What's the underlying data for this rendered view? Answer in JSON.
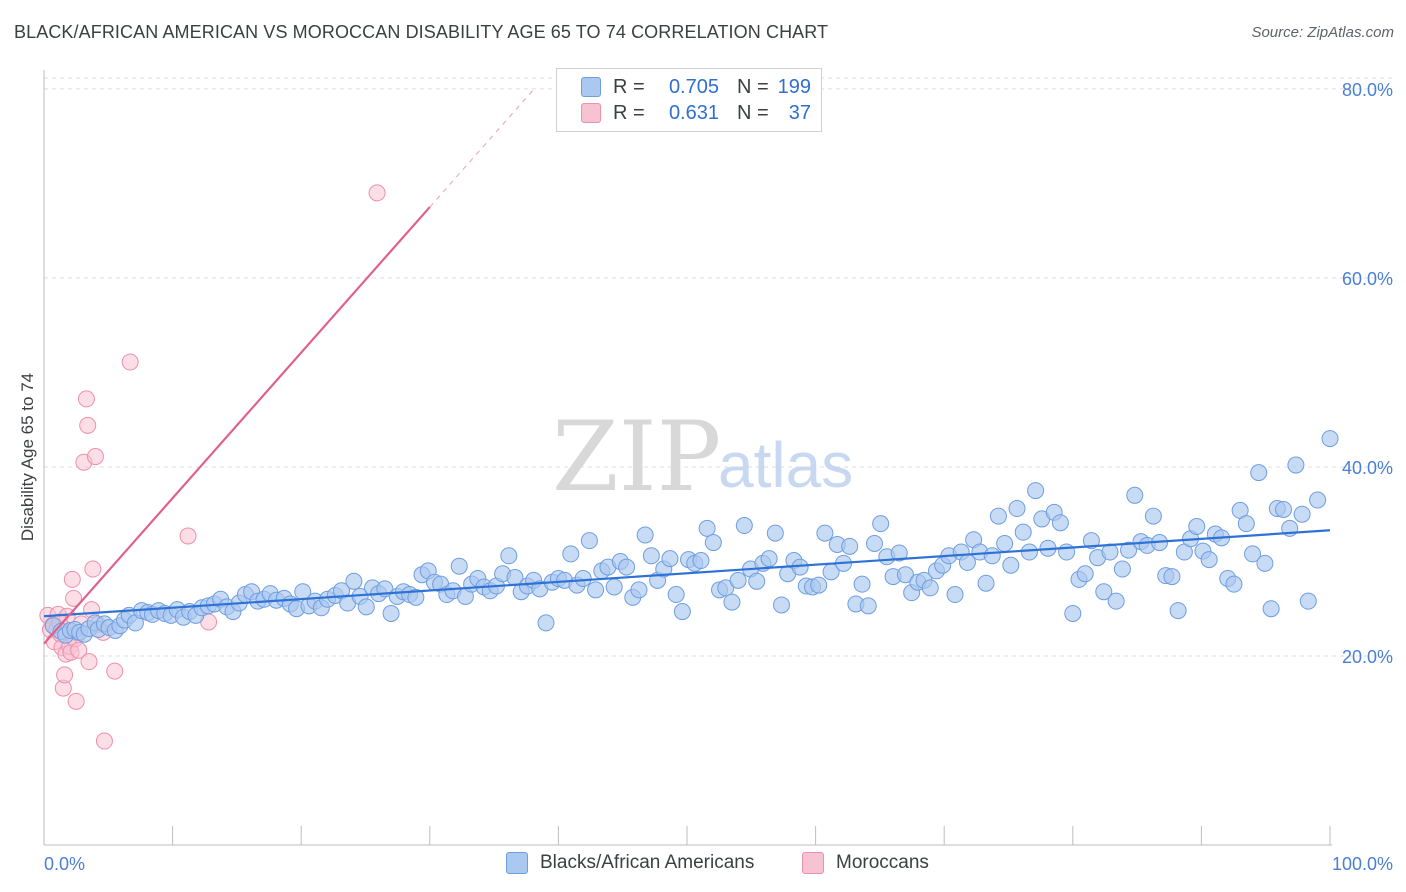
{
  "title": "BLACK/AFRICAN AMERICAN VS MOROCCAN DISABILITY AGE 65 TO 74 CORRELATION CHART",
  "source": "Source: ZipAtlas.com",
  "watermark": {
    "zip": "ZIP",
    "atlas": "atlas"
  },
  "colors": {
    "blue_fill": "#aac8f0",
    "blue_stroke": "#6e9ee0",
    "blue_line": "#2f72d6",
    "pink_fill": "#f7c2d2",
    "pink_stroke": "#ee8fae",
    "pink_line": "#e0608c",
    "tick_text": "#4a7fd4",
    "grid": "#dddddd"
  },
  "legend": {
    "rows": [
      {
        "r_label": "R =",
        "r_value": "0.705",
        "n_label": "N =",
        "n_value": "199"
      },
      {
        "r_label": "R =",
        "r_value": "0.631",
        "n_label": "N =",
        "n_value": "37"
      }
    ]
  },
  "bottom_legend": {
    "blue": "Blacks/African Americans",
    "pink": "Moroccans"
  },
  "chart_data": {
    "type": "scatter",
    "title": "BLACK/AFRICAN AMERICAN VS MOROCCAN DISABILITY AGE 65 TO 74 CORRELATION CHART",
    "xlabel": "",
    "ylabel": "Disability Age 65 to 74",
    "xlim": [
      0,
      100
    ],
    "ylim": [
      0,
      82
    ],
    "x_ticks_labeled": [
      "0.0%",
      "100.0%"
    ],
    "y_ticks": [
      {
        "value": 20,
        "label": "20.0%"
      },
      {
        "value": 40,
        "label": "40.0%"
      },
      {
        "value": 60,
        "label": "60.0%"
      },
      {
        "value": 80,
        "label": "80.0%"
      }
    ],
    "grid": "horizontal dashed",
    "legend_placement": "top-center",
    "series": [
      {
        "name": "Blacks/African Americans",
        "color": "#aac8f0",
        "trend": {
          "x": [
            0,
            100
          ],
          "y": [
            24.2,
            33.3
          ]
        },
        "points": [
          [
            0.6,
            23.2
          ],
          [
            1.1,
            22.6
          ],
          [
            1.4,
            22.2
          ],
          [
            1.7,
            22.7
          ],
          [
            2.0,
            22.8
          ],
          [
            2.3,
            22.5
          ],
          [
            2.6,
            22.3
          ],
          [
            2.9,
            22.9
          ],
          [
            3.3,
            23.5
          ],
          [
            3.5,
            22.8
          ],
          [
            3.9,
            23.4
          ],
          [
            4.2,
            23.0
          ],
          [
            4.6,
            22.7
          ],
          [
            4.9,
            23.2
          ],
          [
            5.2,
            23.8
          ],
          [
            5.5,
            24.3
          ],
          [
            5.9,
            23.5
          ],
          [
            6.3,
            24.8
          ],
          [
            6.7,
            24.6
          ],
          [
            7.0,
            24.4
          ],
          [
            7.4,
            24.8
          ],
          [
            7.8,
            24.5
          ],
          [
            8.2,
            24.3
          ],
          [
            8.6,
            24.9
          ],
          [
            9.0,
            24.1
          ],
          [
            9.4,
            24.7
          ],
          [
            9.8,
            24.3
          ],
          [
            10.2,
            25.1
          ],
          [
            10.6,
            25.3
          ],
          [
            11.0,
            25.5
          ],
          [
            11.4,
            26.0
          ],
          [
            11.8,
            25.2
          ],
          [
            12.2,
            24.7
          ],
          [
            12.6,
            25.6
          ],
          [
            13.0,
            26.5
          ],
          [
            13.4,
            26.8
          ],
          [
            13.8,
            25.8
          ],
          [
            14.2,
            26.0
          ],
          [
            14.6,
            26.6
          ],
          [
            15.0,
            25.9
          ],
          [
            15.5,
            26.1
          ],
          [
            15.9,
            25.5
          ],
          [
            16.3,
            25.0
          ],
          [
            16.7,
            26.8
          ],
          [
            17.1,
            25.3
          ],
          [
            17.5,
            25.8
          ],
          [
            17.9,
            25.1
          ],
          [
            18.3,
            26.0
          ],
          [
            18.8,
            26.4
          ],
          [
            19.2,
            26.9
          ],
          [
            19.6,
            25.6
          ],
          [
            20.0,
            27.9
          ],
          [
            20.4,
            26.3
          ],
          [
            20.8,
            25.2
          ],
          [
            21.2,
            27.2
          ],
          [
            21.6,
            26.6
          ],
          [
            22.0,
            27.1
          ],
          [
            22.4,
            24.5
          ],
          [
            22.8,
            26.3
          ],
          [
            23.2,
            26.8
          ],
          [
            23.6,
            26.5
          ],
          [
            24.0,
            26.2
          ],
          [
            24.4,
            28.6
          ],
          [
            24.8,
            29.0
          ],
          [
            25.2,
            27.8
          ],
          [
            25.6,
            27.6
          ],
          [
            26.0,
            26.5
          ],
          [
            26.4,
            26.9
          ],
          [
            26.8,
            29.5
          ],
          [
            27.2,
            26.3
          ],
          [
            27.6,
            27.6
          ],
          [
            28.0,
            28.2
          ],
          [
            28.4,
            27.3
          ],
          [
            28.8,
            26.9
          ],
          [
            29.2,
            27.4
          ],
          [
            29.6,
            28.7
          ],
          [
            30.0,
            30.6
          ],
          [
            30.4,
            28.3
          ],
          [
            30.8,
            26.8
          ],
          [
            31.2,
            27.4
          ],
          [
            31.6,
            28.0
          ],
          [
            32.0,
            27.1
          ],
          [
            32.4,
            23.5
          ],
          [
            32.8,
            27.8
          ],
          [
            33.2,
            28.2
          ],
          [
            33.6,
            28.0
          ],
          [
            34.0,
            30.8
          ],
          [
            34.4,
            27.5
          ],
          [
            34.8,
            28.2
          ],
          [
            35.2,
            32.2
          ],
          [
            35.6,
            27.0
          ],
          [
            36.0,
            29.0
          ],
          [
            36.4,
            29.4
          ],
          [
            36.8,
            27.3
          ],
          [
            37.2,
            30.0
          ],
          [
            37.6,
            29.4
          ],
          [
            38.0,
            26.2
          ],
          [
            38.4,
            27.0
          ],
          [
            38.8,
            32.8
          ],
          [
            39.2,
            30.6
          ],
          [
            39.6,
            28.0
          ],
          [
            40.0,
            29.2
          ],
          [
            40.4,
            30.3
          ],
          [
            40.8,
            26.5
          ],
          [
            41.2,
            24.7
          ],
          [
            41.6,
            30.2
          ],
          [
            42.0,
            29.8
          ],
          [
            42.4,
            30.1
          ],
          [
            42.8,
            33.5
          ],
          [
            43.2,
            32.0
          ],
          [
            43.6,
            27.0
          ],
          [
            44.0,
            27.2
          ],
          [
            44.4,
            25.7
          ],
          [
            44.8,
            28.0
          ],
          [
            45.2,
            33.8
          ],
          [
            45.6,
            29.2
          ],
          [
            46.0,
            27.9
          ],
          [
            46.4,
            29.8
          ],
          [
            46.8,
            30.3
          ],
          [
            47.2,
            33.0
          ],
          [
            47.6,
            25.4
          ],
          [
            48.0,
            28.7
          ],
          [
            48.4,
            30.1
          ],
          [
            48.8,
            29.4
          ],
          [
            49.2,
            27.4
          ],
          [
            49.6,
            27.3
          ],
          [
            50.0,
            27.5
          ],
          [
            50.4,
            33.0
          ],
          [
            50.8,
            28.9
          ],
          [
            51.2,
            31.8
          ],
          [
            51.6,
            29.8
          ],
          [
            52.0,
            31.6
          ],
          [
            52.4,
            25.5
          ],
          [
            52.8,
            27.6
          ],
          [
            53.2,
            25.3
          ],
          [
            53.6,
            31.9
          ],
          [
            54.0,
            34.0
          ],
          [
            54.4,
            30.5
          ],
          [
            54.8,
            28.4
          ],
          [
            55.2,
            30.9
          ],
          [
            55.6,
            28.6
          ],
          [
            56.0,
            26.7
          ],
          [
            56.4,
            27.8
          ],
          [
            56.8,
            28.0
          ],
          [
            57.2,
            27.2
          ],
          [
            57.6,
            29.0
          ],
          [
            58.0,
            29.6
          ],
          [
            58.4,
            30.6
          ],
          [
            58.8,
            26.5
          ],
          [
            59.2,
            31.0
          ],
          [
            59.6,
            29.9
          ],
          [
            60.0,
            32.3
          ],
          [
            60.4,
            31.0
          ],
          [
            60.8,
            27.7
          ],
          [
            61.2,
            30.6
          ],
          [
            61.6,
            34.8
          ],
          [
            62.0,
            31.9
          ],
          [
            62.4,
            29.6
          ],
          [
            62.8,
            35.6
          ],
          [
            63.2,
            33.1
          ],
          [
            63.6,
            31.0
          ],
          [
            64.0,
            37.5
          ],
          [
            64.4,
            34.5
          ],
          [
            64.8,
            31.4
          ],
          [
            65.2,
            35.2
          ],
          [
            65.6,
            34.1
          ],
          [
            66.0,
            31.0
          ],
          [
            66.4,
            24.5
          ],
          [
            66.8,
            28.1
          ],
          [
            67.2,
            28.7
          ],
          [
            67.6,
            32.2
          ],
          [
            68.0,
            30.4
          ],
          [
            68.4,
            26.8
          ],
          [
            68.8,
            31.0
          ],
          [
            69.2,
            25.8
          ],
          [
            69.6,
            29.2
          ],
          [
            70.0,
            31.2
          ],
          [
            70.4,
            37.0
          ],
          [
            70.8,
            32.1
          ],
          [
            71.2,
            31.7
          ],
          [
            71.6,
            34.8
          ],
          [
            72.0,
            32.0
          ],
          [
            72.4,
            28.5
          ],
          [
            72.8,
            28.4
          ],
          [
            73.2,
            24.8
          ],
          [
            73.6,
            31.0
          ],
          [
            74.0,
            32.4
          ],
          [
            74.4,
            33.7
          ],
          [
            74.8,
            31.1
          ],
          [
            75.2,
            30.2
          ],
          [
            75.6,
            32.9
          ],
          [
            76.0,
            32.5
          ],
          [
            76.4,
            28.2
          ],
          [
            76.8,
            27.6
          ],
          [
            77.2,
            35.4
          ],
          [
            77.6,
            34.0
          ],
          [
            78.0,
            30.8
          ],
          [
            78.4,
            39.4
          ],
          [
            78.8,
            29.8
          ],
          [
            79.2,
            25.0
          ],
          [
            79.6,
            35.6
          ],
          [
            80.0,
            35.5
          ],
          [
            80.4,
            33.5
          ],
          [
            80.8,
            40.2
          ],
          [
            81.2,
            35.0
          ],
          [
            81.6,
            25.8
          ],
          [
            82.2,
            36.5
          ],
          [
            83.0,
            43.0
          ]
        ],
        "x_scale_note": "x in percent, compressed (points span full 0-100 range)"
      },
      {
        "name": "Moroccans",
        "color": "#f7c2d2",
        "trend": {
          "x": [
            0,
            30
          ],
          "y": [
            21.3,
            67.5
          ]
        },
        "points": [
          [
            0.3,
            24.3
          ],
          [
            0.5,
            22.8
          ],
          [
            0.7,
            23.3
          ],
          [
            0.8,
            21.5
          ],
          [
            1.0,
            22.8
          ],
          [
            1.1,
            24.4
          ],
          [
            1.3,
            22.3
          ],
          [
            1.4,
            20.9
          ],
          [
            1.5,
            16.6
          ],
          [
            1.6,
            18.0
          ],
          [
            1.7,
            20.2
          ],
          [
            1.8,
            24.2
          ],
          [
            2.0,
            21.0
          ],
          [
            2.1,
            20.4
          ],
          [
            2.2,
            28.1
          ],
          [
            2.3,
            26.1
          ],
          [
            2.4,
            21.8
          ],
          [
            2.5,
            15.2
          ],
          [
            2.6,
            22.5
          ],
          [
            2.7,
            20.6
          ],
          [
            2.9,
            23.4
          ],
          [
            3.1,
            40.5
          ],
          [
            3.3,
            47.2
          ],
          [
            3.4,
            44.4
          ],
          [
            3.5,
            19.4
          ],
          [
            3.7,
            24.9
          ],
          [
            3.8,
            29.2
          ],
          [
            4.0,
            41.1
          ],
          [
            4.2,
            23.3
          ],
          [
            4.6,
            22.5
          ],
          [
            4.7,
            11.0
          ],
          [
            5.5,
            18.4
          ],
          [
            6.7,
            51.1
          ],
          [
            11.2,
            32.7
          ],
          [
            12.8,
            23.6
          ],
          [
            25.9,
            69.0
          ],
          [
            1.2,
            23.6
          ]
        ]
      }
    ]
  }
}
